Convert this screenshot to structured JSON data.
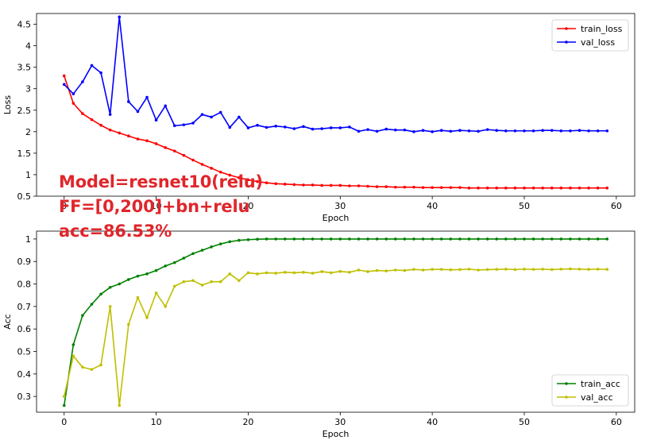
{
  "annotations": {
    "line1": "Model=resnet10(relu)",
    "line2": "FF=[0,200]+bn+relu",
    "line3": "acc=86.53%"
  },
  "chart_data": [
    {
      "type": "line",
      "xlabel": "Epoch",
      "ylabel": "Loss",
      "xlim": [
        -3,
        62
      ],
      "ylim": [
        0.5,
        4.75
      ],
      "xticks": [
        0,
        10,
        20,
        30,
        40,
        50,
        60
      ],
      "yticks": [
        0.5,
        1.0,
        1.5,
        2.0,
        2.5,
        3.0,
        3.5,
        4.0,
        4.5
      ],
      "legend_position": "upper right",
      "x": [
        0,
        1,
        2,
        3,
        4,
        5,
        6,
        7,
        8,
        9,
        10,
        11,
        12,
        13,
        14,
        15,
        16,
        17,
        18,
        19,
        20,
        21,
        22,
        23,
        24,
        25,
        26,
        27,
        28,
        29,
        30,
        31,
        32,
        33,
        34,
        35,
        36,
        37,
        38,
        39,
        40,
        41,
        42,
        43,
        44,
        45,
        46,
        47,
        48,
        49,
        50,
        51,
        52,
        53,
        54,
        55,
        56,
        57,
        58,
        59
      ],
      "series": [
        {
          "name": "train_loss",
          "color": "#ff0000",
          "values": [
            3.3,
            2.66,
            2.42,
            2.28,
            2.15,
            2.04,
            1.97,
            1.9,
            1.83,
            1.79,
            1.72,
            1.63,
            1.55,
            1.45,
            1.34,
            1.24,
            1.15,
            1.06,
            0.99,
            0.93,
            0.88,
            0.84,
            0.81,
            0.79,
            0.78,
            0.77,
            0.76,
            0.76,
            0.75,
            0.75,
            0.75,
            0.74,
            0.74,
            0.73,
            0.72,
            0.72,
            0.71,
            0.71,
            0.71,
            0.7,
            0.7,
            0.7,
            0.7,
            0.7,
            0.69,
            0.69,
            0.69,
            0.69,
            0.69,
            0.69,
            0.69,
            0.69,
            0.69,
            0.69,
            0.69,
            0.69,
            0.69,
            0.69,
            0.69,
            0.69
          ]
        },
        {
          "name": "val_loss",
          "color": "#0000ff",
          "values": [
            3.1,
            2.88,
            3.16,
            3.54,
            3.37,
            2.4,
            4.67,
            2.7,
            2.47,
            2.8,
            2.27,
            2.6,
            2.14,
            2.16,
            2.2,
            2.4,
            2.34,
            2.45,
            2.1,
            2.34,
            2.09,
            2.15,
            2.1,
            2.13,
            2.11,
            2.07,
            2.12,
            2.06,
            2.07,
            2.09,
            2.09,
            2.11,
            2.01,
            2.05,
            2.01,
            2.06,
            2.04,
            2.04,
            2.0,
            2.03,
            2.0,
            2.03,
            2.01,
            2.03,
            2.02,
            2.01,
            2.05,
            2.03,
            2.02,
            2.02,
            2.02,
            2.02,
            2.03,
            2.03,
            2.02,
            2.02,
            2.03,
            2.02,
            2.02,
            2.02
          ]
        }
      ]
    },
    {
      "type": "line",
      "xlabel": "Epoch",
      "ylabel": "Acc",
      "xlim": [
        -3,
        62
      ],
      "ylim": [
        0.23,
        1.035
      ],
      "xticks": [
        0,
        10,
        20,
        30,
        40,
        50,
        60
      ],
      "yticks": [
        0.3,
        0.4,
        0.5,
        0.6,
        0.7,
        0.8,
        0.9,
        1.0
      ],
      "legend_position": "lower right",
      "x": [
        0,
        1,
        2,
        3,
        4,
        5,
        6,
        7,
        8,
        9,
        10,
        11,
        12,
        13,
        14,
        15,
        16,
        17,
        18,
        19,
        20,
        21,
        22,
        23,
        24,
        25,
        26,
        27,
        28,
        29,
        30,
        31,
        32,
        33,
        34,
        35,
        36,
        37,
        38,
        39,
        40,
        41,
        42,
        43,
        44,
        45,
        46,
        47,
        48,
        49,
        50,
        51,
        52,
        53,
        54,
        55,
        56,
        57,
        58,
        59
      ],
      "series": [
        {
          "name": "train_acc",
          "color": "#008000",
          "values": [
            0.26,
            0.53,
            0.66,
            0.71,
            0.755,
            0.785,
            0.8,
            0.82,
            0.835,
            0.845,
            0.86,
            0.88,
            0.895,
            0.915,
            0.935,
            0.95,
            0.965,
            0.978,
            0.988,
            0.994,
            0.997,
            0.999,
            1.0,
            1.0,
            1.0,
            1.0,
            1.0,
            1.0,
            1.0,
            1.0,
            1.0,
            1.0,
            1.0,
            1.0,
            1.0,
            1.0,
            1.0,
            1.0,
            1.0,
            1.0,
            1.0,
            1.0,
            1.0,
            1.0,
            1.0,
            1.0,
            1.0,
            1.0,
            1.0,
            1.0,
            1.0,
            1.0,
            1.0,
            1.0,
            1.0,
            1.0,
            1.0,
            1.0,
            1.0,
            1.0
          ]
        },
        {
          "name": "val_acc",
          "color": "#bfbf00",
          "values": [
            0.3,
            0.48,
            0.43,
            0.42,
            0.44,
            0.7,
            0.26,
            0.62,
            0.74,
            0.65,
            0.76,
            0.7,
            0.79,
            0.81,
            0.815,
            0.795,
            0.81,
            0.81,
            0.845,
            0.815,
            0.85,
            0.845,
            0.85,
            0.848,
            0.852,
            0.85,
            0.852,
            0.848,
            0.855,
            0.85,
            0.856,
            0.852,
            0.862,
            0.855,
            0.86,
            0.858,
            0.862,
            0.86,
            0.865,
            0.862,
            0.865,
            0.865,
            0.863,
            0.864,
            0.866,
            0.862,
            0.864,
            0.865,
            0.866,
            0.864,
            0.866,
            0.865,
            0.866,
            0.864,
            0.866,
            0.867,
            0.866,
            0.865,
            0.866,
            0.865
          ]
        }
      ]
    }
  ]
}
